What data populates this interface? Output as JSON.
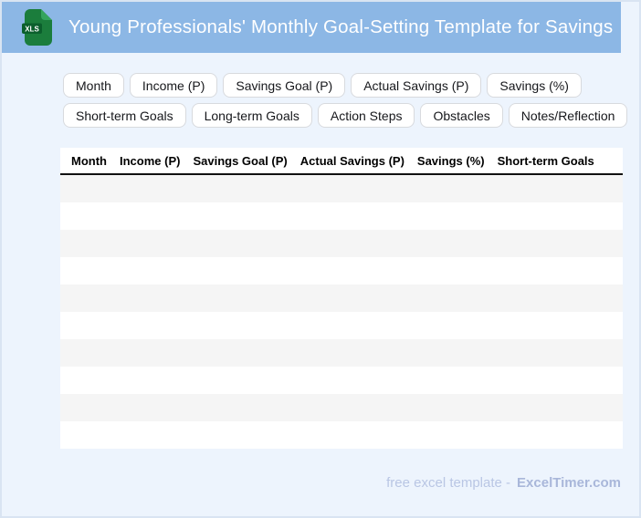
{
  "header": {
    "title": "Young Professionals' Monthly Goal-Setting Template for Savings",
    "icon": {
      "name": "xls-file-icon",
      "label": "XLS",
      "body_color": "#1b7d3c",
      "fold_color": "#35a45d",
      "band_color": "#0b5f2c"
    },
    "bg_color": "#8cb7e5"
  },
  "chips": [
    "Month",
    "Income (P)",
    "Savings Goal (P)",
    "Actual Savings (P)",
    "Savings (%)",
    "Short-term Goals",
    "Long-term Goals",
    "Action Steps",
    "Obstacles",
    "Notes/Reflection"
  ],
  "table": {
    "columns": [
      "Month",
      "Income (P)",
      "Savings Goal (P)",
      "Actual Savings (P)",
      "Savings (%)",
      "Short-term Goals"
    ],
    "empty_rows": 10,
    "stripe_color": "#f5f5f5"
  },
  "footer": {
    "text": "free excel template -",
    "brand": "ExcelTimer.com"
  },
  "colors": {
    "page_bg": "#edf4fd",
    "page_border": "#d9e4f2",
    "header_bg": "#8cb7e5",
    "header_rule": "#111111"
  }
}
